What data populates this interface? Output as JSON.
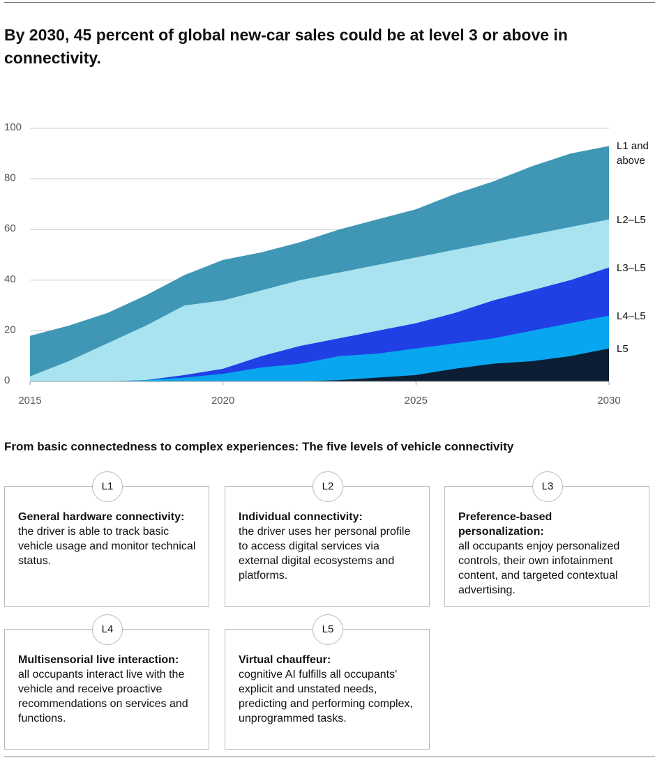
{
  "chart_data": {
    "type": "area",
    "title": "By 2030, 45 percent of global new-car sales could be at level 3 or above in connectivity.",
    "x": [
      2015,
      2016,
      2017,
      2018,
      2019,
      2020,
      2021,
      2022,
      2023,
      2024,
      2025,
      2026,
      2027,
      2028,
      2029,
      2030
    ],
    "xlim": [
      2015,
      2030
    ],
    "xticks": [
      2015,
      2020,
      2025,
      2030
    ],
    "ylim": [
      0,
      100
    ],
    "yticks": [
      0,
      20,
      40,
      60,
      80,
      100
    ],
    "grid": true,
    "series": [
      {
        "name": "L1 and above",
        "color": "#3f97b5",
        "values": [
          18,
          22,
          27,
          34,
          42,
          48,
          51,
          55,
          60,
          64,
          68,
          74,
          79,
          85,
          90,
          93
        ]
      },
      {
        "name": "L2–L5",
        "color": "#a9e3ef",
        "values": [
          2,
          8,
          15,
          22,
          30,
          32,
          36,
          40,
          43,
          46,
          49,
          52,
          55,
          58,
          61,
          64
        ]
      },
      {
        "name": "L3–L5",
        "color": "#2040e6",
        "values": [
          0,
          0,
          0,
          0.5,
          2.5,
          5,
          10,
          14,
          17,
          20,
          23,
          27,
          32,
          36,
          40,
          45
        ]
      },
      {
        "name": "L4–L5",
        "color": "#09a6f0",
        "values": [
          0,
          0,
          0,
          0.5,
          1.5,
          3,
          5.5,
          7,
          10,
          11,
          13,
          15,
          17,
          20,
          23,
          26
        ]
      },
      {
        "name": "L5",
        "color": "#0b1e33",
        "values": [
          0,
          0,
          0,
          0,
          0,
          0,
          0,
          0,
          0.5,
          1.5,
          2.5,
          5,
          7,
          8,
          10,
          13
        ]
      }
    ]
  },
  "levels_title": "From basic connectedness to complex experiences: The five levels of vehicle connectivity",
  "levels": [
    {
      "level": "L1",
      "heading": "General hardware connectivity:",
      "text": "the driver is able to track basic vehicle usage and monitor technical status."
    },
    {
      "level": "L2",
      "heading": "Individual connectivity:",
      "text": "the driver uses her personal profile to access digital services via external digital ecosystems and platforms."
    },
    {
      "level": "L3",
      "heading": "Preference-based personalization:",
      "text": "all occupants enjoy personalized controls, their own infotainment content, and targeted contextual advertising."
    },
    {
      "level": "L4",
      "heading": "Multisensorial live interaction:",
      "text": "all occupants interact live with the vehicle and receive proactive recommendations on services and functions."
    },
    {
      "level": "L5",
      "heading": "Virtual chauffeur:",
      "text": "cognitive AI fulfills all occupants' explicit and unstated needs, predicting and performing complex, unprogrammed tasks."
    }
  ]
}
